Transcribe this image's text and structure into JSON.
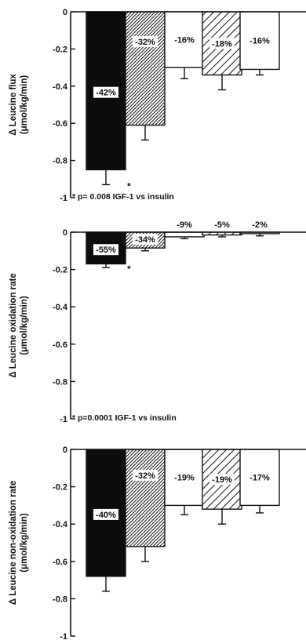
{
  "figure": {
    "type": "bar-panels"
  },
  "chart_data": [
    {
      "type": "bar",
      "ylabel_line1": "Δ Leucine flux",
      "ylabel_line2": "(μmol/kg/min)",
      "ylim": [
        -1,
        0
      ],
      "yticks": [
        0,
        -0.2,
        -0.4,
        -0.6,
        -0.8,
        -1
      ],
      "ytick_labels": [
        "0",
        "-0.2",
        "-0.4",
        "-0.6",
        "-0.8",
        "-1"
      ],
      "footnote": "* p= 0.008  IGF-1 vs insulin",
      "bars": [
        {
          "value": -0.85,
          "error": 0.08,
          "fill": "solid",
          "label": "-42%",
          "star": true
        },
        {
          "value": -0.61,
          "error": 0.08,
          "fill": "dense-hatch",
          "label": "-32%",
          "star": false
        },
        {
          "value": -0.3,
          "error": 0.06,
          "fill": "white",
          "label": "-16%",
          "star": false
        },
        {
          "value": -0.34,
          "error": 0.08,
          "fill": "diagonal-hatch",
          "label": "-18%",
          "star": false
        },
        {
          "value": -0.31,
          "error": 0.03,
          "fill": "white",
          "label": "-16%",
          "star": false
        }
      ]
    },
    {
      "type": "bar",
      "ylabel_line1": "Δ Leucine oxidation rate",
      "ylabel_line2": "(μmol/kg/min)",
      "ylim": [
        -1,
        0
      ],
      "yticks": [
        0,
        -0.2,
        -0.4,
        -0.6,
        -0.8,
        -1
      ],
      "ytick_labels": [
        "0",
        "-0.2",
        "-0.4",
        "-0.6",
        "-0.8",
        "-1"
      ],
      "footnote": "* p=0.0001  IGF-1 vs insulin",
      "bars": [
        {
          "value": -0.17,
          "error": 0.02,
          "fill": "solid",
          "label": "-55%",
          "star": true
        },
        {
          "value": -0.085,
          "error": 0.015,
          "fill": "dense-hatch",
          "label": "-34%",
          "star": false
        },
        {
          "value": -0.025,
          "error": 0.01,
          "fill": "white",
          "label": "-9%",
          "star": false
        },
        {
          "value": -0.015,
          "error": 0.01,
          "fill": "diagonal-hatch",
          "label": "-5%",
          "star": false
        },
        {
          "value": -0.008,
          "error": 0.012,
          "fill": "white",
          "label": "-2%",
          "star": false
        }
      ]
    },
    {
      "type": "bar",
      "ylabel_line1": "Δ Leucine non-oxidation rate",
      "ylabel_line2": "(μmol/kg/min)",
      "ylim": [
        -1,
        0
      ],
      "yticks": [
        0,
        -0.2,
        -0.4,
        -0.6,
        -0.8,
        -1
      ],
      "ytick_labels": [
        "0",
        "-0.2",
        "-0.4",
        "-0.6",
        "-0.8",
        "-1"
      ],
      "footnote": "",
      "bars": [
        {
          "value": -0.68,
          "error": 0.08,
          "fill": "solid",
          "label": "-40%",
          "star": false
        },
        {
          "value": -0.52,
          "error": 0.08,
          "fill": "dense-hatch",
          "label": "-32%",
          "star": false
        },
        {
          "value": -0.3,
          "error": 0.05,
          "fill": "white",
          "label": "-19%",
          "star": false
        },
        {
          "value": -0.32,
          "error": 0.08,
          "fill": "diagonal-hatch",
          "label": "-19%",
          "star": false
        },
        {
          "value": -0.3,
          "error": 0.04,
          "fill": "white",
          "label": "-17%",
          "star": false
        }
      ]
    }
  ]
}
